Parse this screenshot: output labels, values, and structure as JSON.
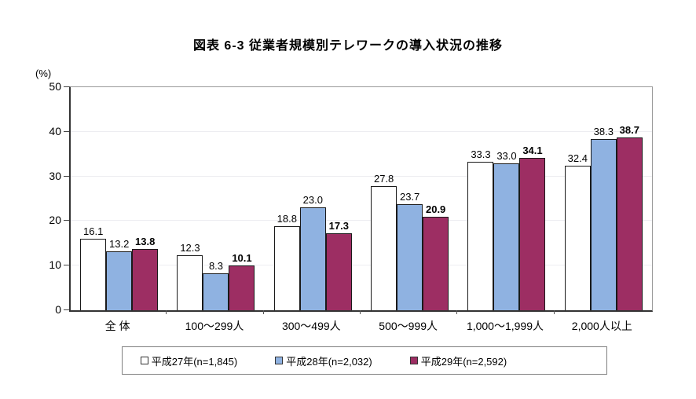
{
  "chart_data": {
    "type": "bar",
    "title": "図表 6-3 従業者規模別テレワークの導入状況の推移",
    "y_unit": "(%)",
    "ylim": [
      0,
      50
    ],
    "y_ticks": [
      0,
      10,
      20,
      30,
      40,
      50
    ],
    "grid": true,
    "legend_position": "bottom",
    "categories": [
      "全 体",
      "100～299人",
      "300～499人",
      "500～999人",
      "1,000～1,999人",
      "2,000人以上"
    ],
    "series": [
      {
        "name": "平成27年(n=1,845)",
        "color": "#FFFFFF",
        "values": [
          16.1,
          12.3,
          18.8,
          27.8,
          33.3,
          32.4
        ]
      },
      {
        "name": "平成28年(n=2,032)",
        "color": "#8FB2E1",
        "values": [
          13.2,
          8.3,
          23.0,
          23.7,
          33.0,
          38.3
        ]
      },
      {
        "name": "平成29年(n=2,592)",
        "color": "#9D2E63",
        "values": [
          13.8,
          10.1,
          17.3,
          20.9,
          34.1,
          38.7
        ],
        "label_bold": true
      }
    ]
  }
}
